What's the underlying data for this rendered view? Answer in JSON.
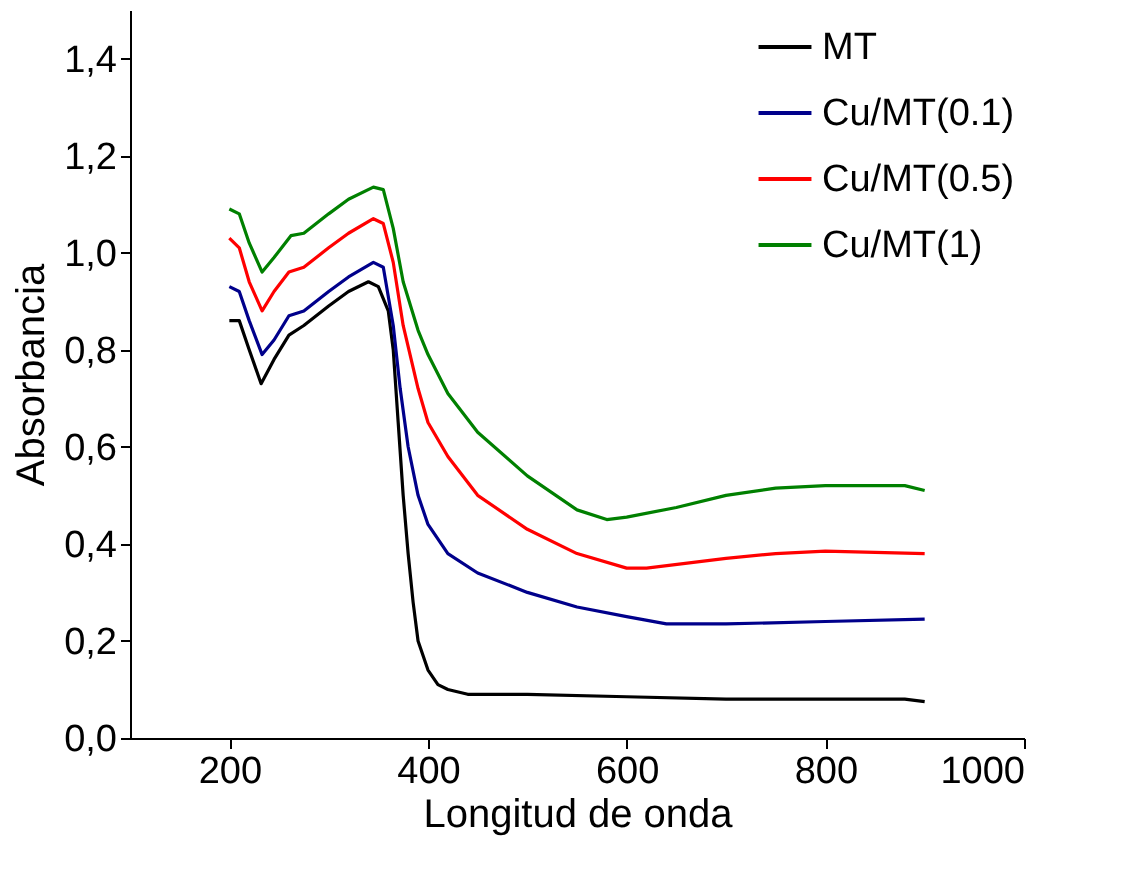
{
  "chart_data": {
    "type": "line",
    "xlabel": "Longitud de onda",
    "ylabel": "Absorbancia",
    "xlim": [
      100,
      1000
    ],
    "xticks": [
      200,
      400,
      600,
      800,
      1000
    ],
    "ylim": [
      0,
      1.5
    ],
    "yticks": [
      {
        "value": 0,
        "label": "0,0"
      },
      {
        "value": 0.2,
        "label": "0,2"
      },
      {
        "value": 0.4,
        "label": "0,4"
      },
      {
        "value": 0.6,
        "label": "0,6"
      },
      {
        "value": 0.8,
        "label": "0,8"
      },
      {
        "value": 1.0,
        "label": "1,0"
      },
      {
        "value": 1.2,
        "label": "1,2"
      },
      {
        "value": 1.4,
        "label": "1,4"
      }
    ],
    "grid": false,
    "legend": "top right",
    "marker": "none",
    "line_style": "solid",
    "series": [
      {
        "name": "MT",
        "color": "#000000",
        "x": [
          200,
          210,
          220,
          232,
          245,
          260,
          275,
          300,
          320,
          340,
          350,
          360,
          365,
          370,
          375,
          380,
          385,
          390,
          400,
          410,
          420,
          440,
          500,
          600,
          700,
          800,
          880,
          900
        ],
        "values": [
          0.86,
          0.86,
          0.8,
          0.73,
          0.78,
          0.83,
          0.85,
          0.89,
          0.92,
          0.94,
          0.93,
          0.88,
          0.8,
          0.65,
          0.5,
          0.38,
          0.28,
          0.2,
          0.14,
          0.11,
          0.1,
          0.09,
          0.09,
          0.085,
          0.08,
          0.08,
          0.08,
          0.075
        ]
      },
      {
        "name": "Cu/MT(0.1)",
        "color": "#00008b",
        "x": [
          200,
          210,
          220,
          233,
          245,
          260,
          275,
          300,
          320,
          345,
          355,
          365,
          372,
          380,
          390,
          400,
          420,
          450,
          500,
          550,
          600,
          640,
          700,
          800,
          900
        ],
        "values": [
          0.93,
          0.92,
          0.86,
          0.79,
          0.82,
          0.87,
          0.88,
          0.92,
          0.95,
          0.98,
          0.97,
          0.85,
          0.72,
          0.6,
          0.5,
          0.44,
          0.38,
          0.34,
          0.3,
          0.27,
          0.25,
          0.235,
          0.235,
          0.24,
          0.245
        ]
      },
      {
        "name": "Cu/MT(0.5)",
        "color": "#ff0000",
        "x": [
          200,
          210,
          220,
          233,
          245,
          260,
          275,
          300,
          320,
          345,
          355,
          365,
          375,
          390,
          400,
          420,
          450,
          500,
          550,
          600,
          620,
          700,
          750,
          800,
          900
        ],
        "values": [
          1.03,
          1.01,
          0.94,
          0.88,
          0.92,
          0.96,
          0.97,
          1.01,
          1.04,
          1.07,
          1.06,
          0.98,
          0.85,
          0.72,
          0.65,
          0.58,
          0.5,
          0.43,
          0.38,
          0.35,
          0.35,
          0.37,
          0.38,
          0.385,
          0.38
        ]
      },
      {
        "name": "Cu/MT(1)",
        "color": "#008000",
        "x": [
          200,
          210,
          220,
          233,
          245,
          262,
          275,
          300,
          320,
          345,
          355,
          365,
          375,
          390,
          400,
          420,
          450,
          500,
          550,
          580,
          600,
          650,
          700,
          750,
          800,
          850,
          880,
          900
        ],
        "values": [
          1.09,
          1.08,
          1.02,
          0.96,
          0.99,
          1.035,
          1.04,
          1.08,
          1.11,
          1.135,
          1.13,
          1.05,
          0.94,
          0.84,
          0.79,
          0.71,
          0.63,
          0.54,
          0.47,
          0.45,
          0.455,
          0.475,
          0.5,
          0.515,
          0.52,
          0.52,
          0.52,
          0.51
        ]
      }
    ]
  }
}
